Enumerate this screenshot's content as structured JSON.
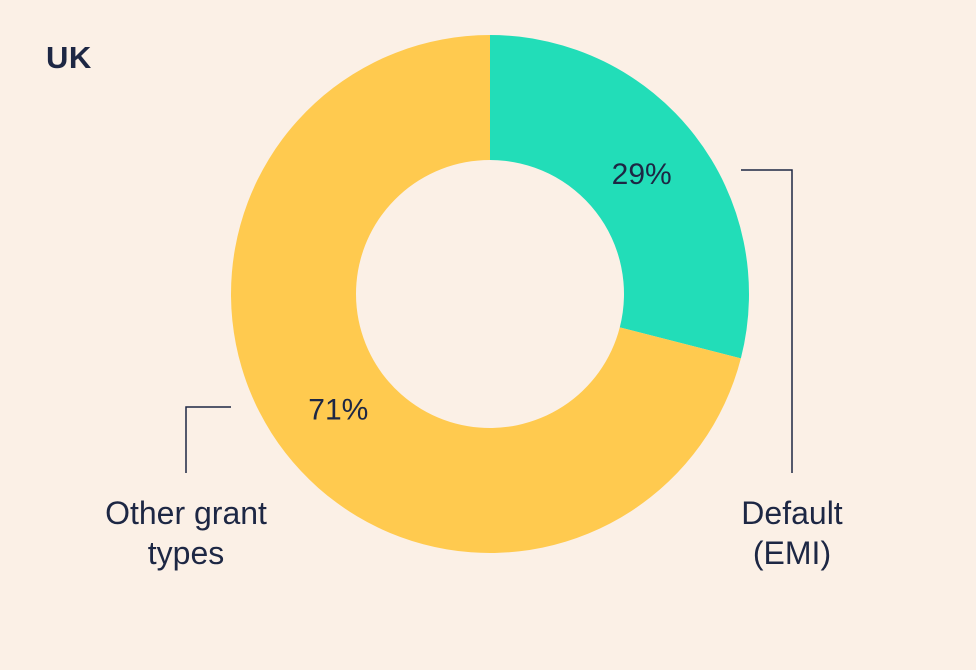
{
  "chart_data": {
    "type": "pie",
    "title": "UK",
    "donut": true,
    "slices": [
      {
        "label_lines": [
          "Default",
          "(EMI)"
        ],
        "value": 29,
        "value_label": "29%",
        "color": "#22ddb8"
      },
      {
        "label_lines": [
          "Other grant",
          "types"
        ],
        "value": 71,
        "value_label": "71%",
        "color": "#ffca4f"
      }
    ]
  },
  "colors": {
    "background": "#fbf0e6",
    "text": "#1d2744",
    "leader_line": "#1d2744"
  }
}
